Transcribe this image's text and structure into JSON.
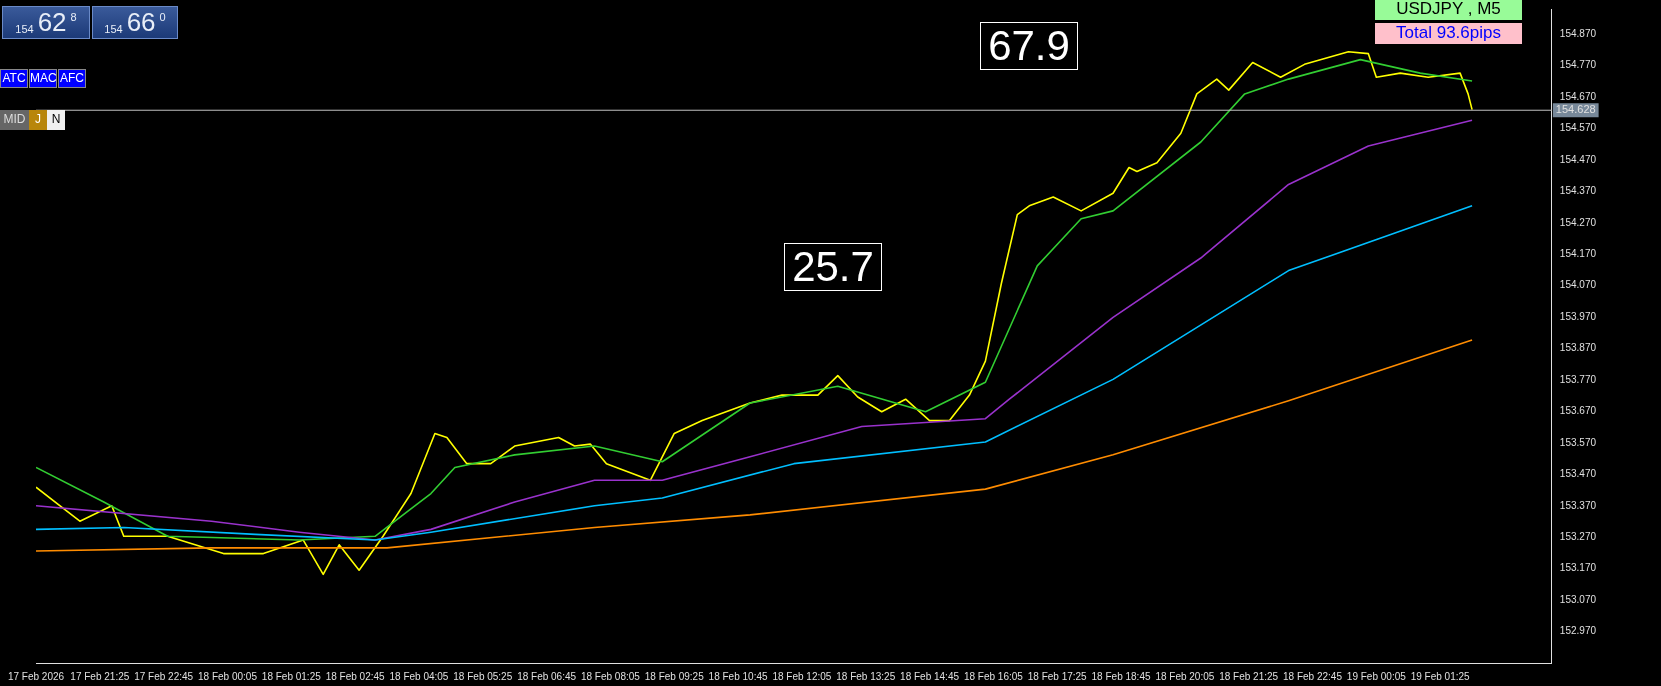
{
  "chart_data": {
    "type": "line",
    "marker": "none",
    "line_style": "solid",
    "grid": false,
    "legend": false,
    "annotations": [
      "USDJPY , M5",
      "Total  93.6pips",
      "67.9",
      "25.7",
      "154",
      "62",
      "8",
      "154",
      "66",
      "0",
      "ATC",
      "MAC",
      "AFC",
      "MID",
      "J",
      "N"
    ],
    "xlim": [
      "2026-02-17T20:05",
      "2026-02-19T03:45"
    ],
    "xticks": [
      {
        "value": "2026-02-17T20:05",
        "label": "17 Feb 2026"
      },
      {
        "value": "2026-02-17T21:25",
        "label": "17 Feb 21:25"
      },
      {
        "value": "2026-02-17T22:45",
        "label": "17 Feb 22:45"
      },
      {
        "value": "2026-02-18T00:05",
        "label": "18 Feb 00:05"
      },
      {
        "value": "2026-02-18T01:25",
        "label": "18 Feb 01:25"
      },
      {
        "value": "2026-02-18T02:45",
        "label": "18 Feb 02:45"
      },
      {
        "value": "2026-02-18T04:05",
        "label": "18 Feb 04:05"
      },
      {
        "value": "2026-02-18T05:25",
        "label": "18 Feb 05:25"
      },
      {
        "value": "2026-02-18T06:45",
        "label": "18 Feb 06:45"
      },
      {
        "value": "2026-02-18T08:05",
        "label": "18 Feb 08:05"
      },
      {
        "value": "2026-02-18T09:25",
        "label": "18 Feb 09:25"
      },
      {
        "value": "2026-02-18T10:45",
        "label": "18 Feb 10:45"
      },
      {
        "value": "2026-02-18T12:05",
        "label": "18 Feb 12:05"
      },
      {
        "value": "2026-02-18T13:25",
        "label": "18 Feb 13:25"
      },
      {
        "value": "2026-02-18T14:45",
        "label": "18 Feb 14:45"
      },
      {
        "value": "2026-02-18T16:05",
        "label": "18 Feb 16:05"
      },
      {
        "value": "2026-02-18T17:25",
        "label": "18 Feb 17:25"
      },
      {
        "value": "2026-02-18T18:45",
        "label": "18 Feb 18:45"
      },
      {
        "value": "2026-02-18T20:05",
        "label": "18 Feb 20:05"
      },
      {
        "value": "2026-02-18T21:25",
        "label": "18 Feb 21:25"
      },
      {
        "value": "2026-02-18T22:45",
        "label": "18 Feb 22:45"
      },
      {
        "value": "2026-02-19T00:05",
        "label": "19 Feb 00:05"
      },
      {
        "value": "2026-02-19T01:25",
        "label": "19 Feb 01:25"
      }
    ],
    "ylim": [
      152.87,
      154.95
    ],
    "yticks": [
      {
        "value": 152.97,
        "label": "152.970"
      },
      {
        "value": 153.07,
        "label": "153.070"
      },
      {
        "value": 153.17,
        "label": "153.170"
      },
      {
        "value": 153.27,
        "label": "153.270"
      },
      {
        "value": 153.37,
        "label": "153.370"
      },
      {
        "value": 153.47,
        "label": "153.470"
      },
      {
        "value": 153.57,
        "label": "153.570"
      },
      {
        "value": 153.67,
        "label": "153.670"
      },
      {
        "value": 153.77,
        "label": "153.770"
      },
      {
        "value": 153.87,
        "label": "153.870"
      },
      {
        "value": 153.97,
        "label": "153.970"
      },
      {
        "value": 154.07,
        "label": "154.070"
      },
      {
        "value": 154.17,
        "label": "154.170"
      },
      {
        "value": 154.27,
        "label": "154.270"
      },
      {
        "value": 154.37,
        "label": "154.370"
      },
      {
        "value": 154.47,
        "label": "154.470"
      },
      {
        "value": 154.57,
        "label": "154.570"
      },
      {
        "value": 154.67,
        "label": "154.670"
      },
      {
        "value": 154.77,
        "label": "154.770"
      },
      {
        "value": 154.87,
        "label": "154.870"
      }
    ],
    "ref_lines": [
      {
        "axis": "y",
        "value": 154.628,
        "label": "154.628",
        "color": "#c0c0c0"
      }
    ],
    "series": [
      {
        "color": "#ff8c00",
        "x": [
          "2026-02-17T20:05",
          "2026-02-17T23:45",
          "2026-02-18T03:25",
          "2026-02-18T07:45",
          "2026-02-18T11:00",
          "2026-02-18T15:55",
          "2026-02-18T18:35",
          "2026-02-18T22:15",
          "2026-02-19T02:05"
        ],
        "values": [
          153.226,
          153.236,
          153.236,
          153.301,
          153.341,
          153.423,
          153.532,
          153.704,
          153.897
        ]
      },
      {
        "color": "#00bfff",
        "x": [
          "2026-02-17T20:05",
          "2026-02-17T21:55",
          "2026-02-18T00:40",
          "2026-02-18T03:10",
          "2026-02-18T04:20",
          "2026-02-18T07:45",
          "2026-02-18T09:10",
          "2026-02-18T11:55",
          "2026-02-18T15:55",
          "2026-02-18T18:35",
          "2026-02-18T22:15",
          "2026-02-19T02:05"
        ],
        "values": [
          153.295,
          153.301,
          153.279,
          153.261,
          153.286,
          153.37,
          153.395,
          153.504,
          153.573,
          153.772,
          154.118,
          154.324
        ]
      },
      {
        "color": "#9932cc",
        "x": [
          "2026-02-17T20:05",
          "2026-02-17T23:45",
          "2026-02-18T01:35",
          "2026-02-18T03:10",
          "2026-02-18T04:20",
          "2026-02-18T06:05",
          "2026-02-18T07:45",
          "2026-02-18T09:10",
          "2026-02-18T11:00",
          "2026-02-18T13:20",
          "2026-02-18T15:55",
          "2026-02-18T16:25",
          "2026-02-18T18:35",
          "2026-02-18T20:25",
          "2026-02-18T22:15",
          "2026-02-18T23:55",
          "2026-02-19T02:05"
        ],
        "values": [
          153.37,
          153.321,
          153.286,
          153.261,
          153.295,
          153.382,
          153.451,
          153.451,
          153.526,
          153.622,
          153.647,
          153.709,
          153.969,
          154.158,
          154.392,
          154.514,
          154.596
        ]
      },
      {
        "color": "#32cd32",
        "x": [
          "2026-02-17T20:05",
          "2026-02-17T21:30",
          "2026-02-17T22:50",
          "2026-02-18T01:35",
          "2026-02-18T03:10",
          "2026-02-18T04:20",
          "2026-02-18T04:50",
          "2026-02-18T06:05",
          "2026-02-18T07:45",
          "2026-02-18T09:10",
          "2026-02-18T11:00",
          "2026-02-18T12:50",
          "2026-02-18T14:40",
          "2026-02-18T15:55",
          "2026-02-18T17:00",
          "2026-02-18T17:55",
          "2026-02-18T18:35",
          "2026-02-18T20:25",
          "2026-02-18T21:20",
          "2026-02-18T22:15",
          "2026-02-18T23:45",
          "2026-02-19T01:00",
          "2026-02-19T02:05"
        ],
        "values": [
          153.492,
          153.382,
          153.273,
          153.261,
          153.273,
          153.409,
          153.492,
          153.532,
          153.56,
          153.51,
          153.697,
          153.75,
          153.669,
          153.763,
          154.133,
          154.283,
          154.308,
          154.527,
          154.68,
          154.727,
          154.789,
          154.746,
          154.721
        ]
      },
      {
        "color": "#ffff00",
        "x": [
          "2026-02-17T20:05",
          "2026-02-17T21:00",
          "2026-02-17T21:40",
          "2026-02-17T21:55",
          "2026-02-17T22:50",
          "2026-02-18T00:00",
          "2026-02-18T00:50",
          "2026-02-18T01:40",
          "2026-02-18T02:05",
          "2026-02-18T02:25",
          "2026-02-18T02:50",
          "2026-02-18T03:20",
          "2026-02-18T03:55",
          "2026-02-18T04:25",
          "2026-02-18T04:40",
          "2026-02-18T05:05",
          "2026-02-18T05:35",
          "2026-02-18T06:05",
          "2026-02-18T07:00",
          "2026-02-18T07:20",
          "2026-02-18T07:40",
          "2026-02-18T08:00",
          "2026-02-18T08:55",
          "2026-02-18T09:25",
          "2026-02-18T10:00",
          "2026-02-18T11:00",
          "2026-02-18T11:40",
          "2026-02-18T12:25",
          "2026-02-18T12:50",
          "2026-02-18T13:15",
          "2026-02-18T13:45",
          "2026-02-18T14:15",
          "2026-02-18T14:45",
          "2026-02-18T15:10",
          "2026-02-18T15:35",
          "2026-02-18T15:55",
          "2026-02-18T16:15",
          "2026-02-18T16:35",
          "2026-02-18T16:50",
          "2026-02-18T17:20",
          "2026-02-18T17:55",
          "2026-02-18T18:35",
          "2026-02-18T18:55",
          "2026-02-18T19:05",
          "2026-02-18T19:30",
          "2026-02-18T20:00",
          "2026-02-18T20:20",
          "2026-02-18T20:45",
          "2026-02-18T21:00",
          "2026-02-18T21:30",
          "2026-02-18T22:05",
          "2026-02-18T22:35",
          "2026-02-18T23:30",
          "2026-02-18T23:55",
          "2026-02-19T00:05",
          "2026-02-19T00:35",
          "2026-02-19T01:10",
          "2026-02-19T01:50",
          "2026-02-19T02:00",
          "2026-02-19T02:05"
        ],
        "values": [
          153.429,
          153.321,
          153.37,
          153.273,
          153.273,
          153.218,
          153.218,
          153.261,
          153.152,
          153.246,
          153.165,
          153.273,
          153.409,
          153.6,
          153.587,
          153.504,
          153.504,
          153.56,
          153.587,
          153.56,
          153.566,
          153.504,
          153.451,
          153.6,
          153.641,
          153.697,
          153.722,
          153.722,
          153.784,
          153.716,
          153.669,
          153.709,
          153.641,
          153.641,
          153.722,
          153.83,
          154.077,
          154.296,
          154.324,
          154.352,
          154.308,
          154.364,
          154.446,
          154.433,
          154.461,
          154.555,
          154.68,
          154.727,
          154.692,
          154.78,
          154.733,
          154.774,
          154.814,
          154.808,
          154.733,
          154.746,
          154.733,
          154.746,
          154.68,
          154.63
        ]
      }
    ]
  }
}
